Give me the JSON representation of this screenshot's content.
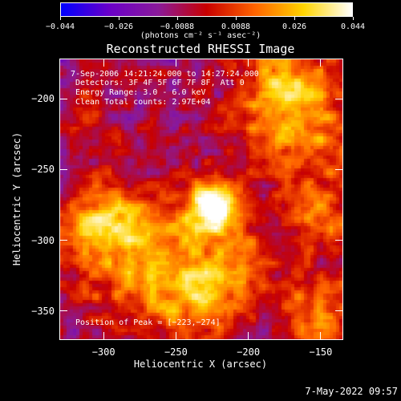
{
  "colorbar": {
    "tick_labels": [
      "−0.044",
      "−0.026",
      "−0.0088",
      "0.0088",
      "0.026",
      "0.044"
    ],
    "unit_label": "(photons cm⁻² s⁻¹ asec⁻²)",
    "colors": [
      "#0000ff",
      "#6a00c8",
      "#8a1a9a",
      "#c80000",
      "#ff6400",
      "#ffd400",
      "#ffffff"
    ]
  },
  "chart_data": {
    "type": "heatmap",
    "title": "Reconstructed RHESSI Image",
    "xlabel": "Heliocentric X (arcsec)",
    "ylabel": "Heliocentric Y (arcsec)",
    "xlim": [
      -330,
      -135
    ],
    "ylim": [
      -370,
      -172
    ],
    "x_ticks": [
      -300,
      -250,
      -200,
      -150
    ],
    "y_ticks": [
      -200,
      -250,
      -300,
      -350
    ],
    "x_tick_labels": [
      "−300",
      "−250",
      "−200",
      "−150"
    ],
    "y_tick_labels": [
      "−200",
      "−250",
      "−300",
      "−350"
    ],
    "peak": [
      -223,
      -274
    ],
    "grid": false
  },
  "info": {
    "line1": "7-Sep-2006 14:21:24.000 to 14:27:24.000",
    "line2": "Detectors: 3F 4F 5F 6F 7F 8F, Att 0",
    "line3": "Energy Range: 3.0 - 6.0 keV",
    "line4": "Clean    Total counts: 2.97E+04",
    "peak_text": "Position of Peak = [−223,−274]"
  },
  "footer": {
    "timestamp": "7-May-2022 09:57"
  }
}
